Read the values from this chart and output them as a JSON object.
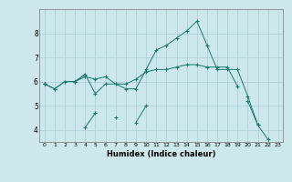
{
  "bg_color": "#cde8ec",
  "grid_color": "#aacdd4",
  "line_color": "#1a7a6e",
  "xlabel": "Humidex (Indice chaleur)",
  "ylim": [
    3.5,
    9.0
  ],
  "xlim": [
    -0.5,
    23.5
  ],
  "yticks": [
    4,
    5,
    6,
    7,
    8
  ],
  "xticks": [
    0,
    1,
    2,
    3,
    4,
    5,
    6,
    7,
    8,
    9,
    10,
    11,
    12,
    13,
    14,
    15,
    16,
    17,
    18,
    19,
    20,
    21,
    22,
    23
  ],
  "series": [
    [
      5.9,
      5.7,
      6.0,
      6.0,
      6.2,
      6.1,
      6.2,
      5.9,
      5.9,
      6.1,
      6.4,
      6.5,
      6.5,
      6.6,
      6.7,
      6.7,
      6.6,
      6.6,
      6.6,
      5.8,
      null,
      null,
      null,
      null
    ],
    [
      5.9,
      5.7,
      6.0,
      6.0,
      6.3,
      5.5,
      5.9,
      5.9,
      5.7,
      5.7,
      6.5,
      7.3,
      7.5,
      7.8,
      8.1,
      8.5,
      7.5,
      6.5,
      6.5,
      6.5,
      5.4,
      4.2,
      null,
      null
    ],
    [
      5.9,
      null,
      null,
      null,
      4.1,
      4.7,
      null,
      4.5,
      null,
      4.3,
      5.0,
      null,
      null,
      null,
      null,
      null,
      null,
      null,
      null,
      null,
      null,
      null,
      null,
      null
    ],
    [
      5.9,
      null,
      null,
      6.0,
      6.3,
      null,
      null,
      null,
      null,
      null,
      null,
      null,
      null,
      null,
      null,
      null,
      null,
      null,
      null,
      null,
      null,
      null,
      null,
      null
    ],
    [
      null,
      null,
      null,
      null,
      null,
      null,
      null,
      null,
      null,
      null,
      null,
      null,
      null,
      null,
      null,
      null,
      null,
      null,
      null,
      null,
      5.2,
      4.2,
      3.6,
      null
    ]
  ]
}
